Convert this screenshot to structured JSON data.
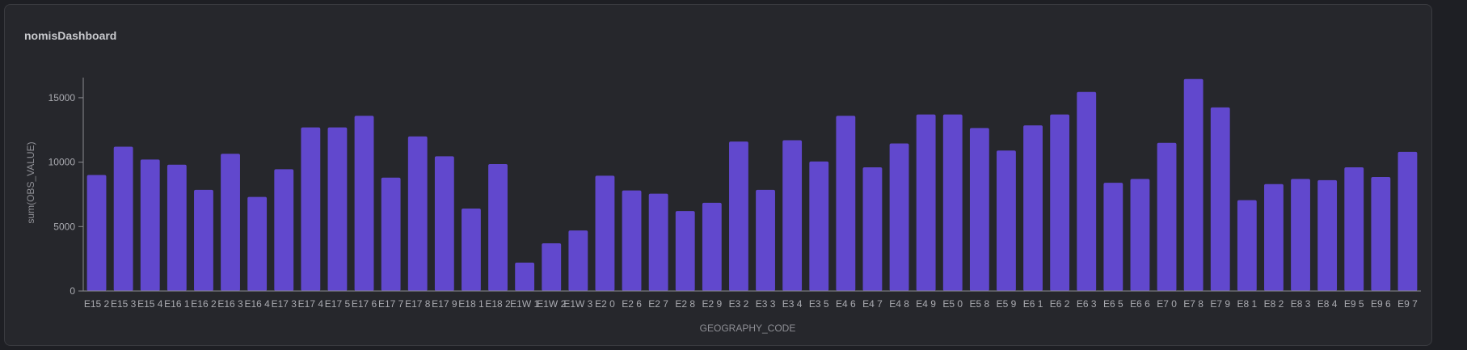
{
  "panel": {
    "title": "nomisDashboard"
  },
  "colors": {
    "bar": "#6148cd",
    "axis": "#8a8b90",
    "background": "#26272c"
  },
  "chart_data": {
    "type": "bar",
    "xlabel": "GEOGRAPHY_CODE",
    "ylabel": "sum(OBS_VALUE)",
    "ylim": [
      0,
      16500
    ],
    "yticks": [
      0,
      5000,
      10000,
      15000
    ],
    "grid": false,
    "categories": [
      "E15 2",
      "E15 3",
      "E15 4",
      "E16 1",
      "E16 2",
      "E16 3",
      "E16 4",
      "E17 3",
      "E17 4",
      "E17 5",
      "E17 6",
      "E17 7",
      "E17 8",
      "E17 9",
      "E18 1",
      "E18 2",
      "E1W 1",
      "E1W 2",
      "E1W 3",
      "E2 0",
      "E2 6",
      "E2 7",
      "E2 8",
      "E2 9",
      "E3 2",
      "E3 3",
      "E3 4",
      "E3 5",
      "E4 6",
      "E4 7",
      "E4 8",
      "E4 9",
      "E5 0",
      "E5 8",
      "E5 9",
      "E6 1",
      "E6 2",
      "E6 3",
      "E6 5",
      "E6 6",
      "E7 0",
      "E7 8",
      "E7 9",
      "E8 1",
      "E8 2",
      "E8 3",
      "E8 4",
      "E9 5",
      "E9 6",
      "E9 7"
    ],
    "values": [
      9000,
      11200,
      10200,
      9800,
      7850,
      10650,
      7300,
      9450,
      12700,
      12700,
      13600,
      8800,
      12000,
      10450,
      6400,
      9850,
      2200,
      3700,
      4700,
      8950,
      7800,
      7550,
      6200,
      6850,
      11600,
      7850,
      11700,
      10050,
      13600,
      9600,
      11450,
      13700,
      13700,
      12650,
      10900,
      12850,
      13700,
      15450,
      8400,
      8700,
      11500,
      16450,
      14250,
      7050,
      8300,
      8700,
      8600,
      9600,
      8850,
      10800
    ]
  }
}
